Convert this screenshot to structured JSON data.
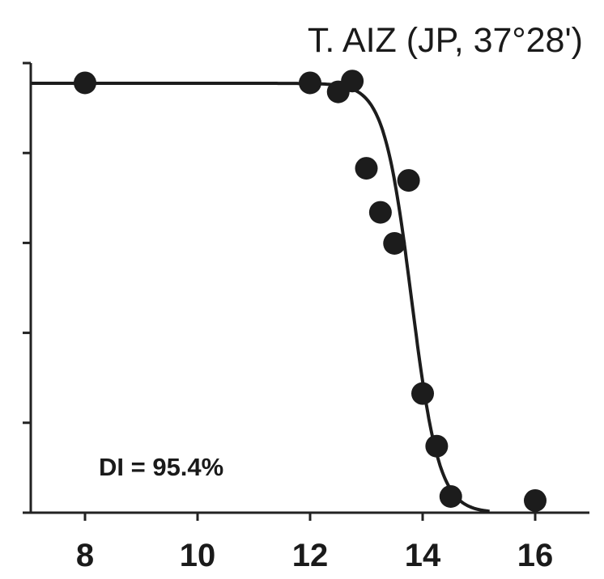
{
  "chart_data": {
    "type": "scatter",
    "title": "T. AIZ (JP, 37°28')",
    "xlabel": "",
    "ylabel": "",
    "xlim": [
      7,
      17.5
    ],
    "ylim": [
      0,
      100
    ],
    "x_ticks": [
      8,
      10,
      12,
      14,
      16
    ],
    "y_ticks": [
      0,
      20,
      40,
      60,
      80,
      100
    ],
    "y_tick_labels_shown": false,
    "grid": false,
    "annotation": "DI = 95.4%",
    "marker_color": "#1c1c1c",
    "line_color": "#1c1c1c",
    "series": [
      {
        "type": "scatter",
        "points": [
          {
            "x": 8.0,
            "y": 95.6
          },
          {
            "x": 12.0,
            "y": 95.6
          },
          {
            "x": 12.5,
            "y": 93.6
          },
          {
            "x": 12.75,
            "y": 96.0
          },
          {
            "x": 13.0,
            "y": 76.6
          },
          {
            "x": 13.25,
            "y": 66.8
          },
          {
            "x": 13.5,
            "y": 59.9
          },
          {
            "x": 13.75,
            "y": 73.9
          },
          {
            "x": 14.0,
            "y": 26.5
          },
          {
            "x": 14.25,
            "y": 14.8
          },
          {
            "x": 14.5,
            "y": 3.6
          },
          {
            "x": 16.0,
            "y": 2.7
          }
        ]
      },
      {
        "type": "line",
        "fit": "logistic",
        "upper": 95.5,
        "midpoint": 13.8,
        "slope": 4.1
      }
    ]
  }
}
